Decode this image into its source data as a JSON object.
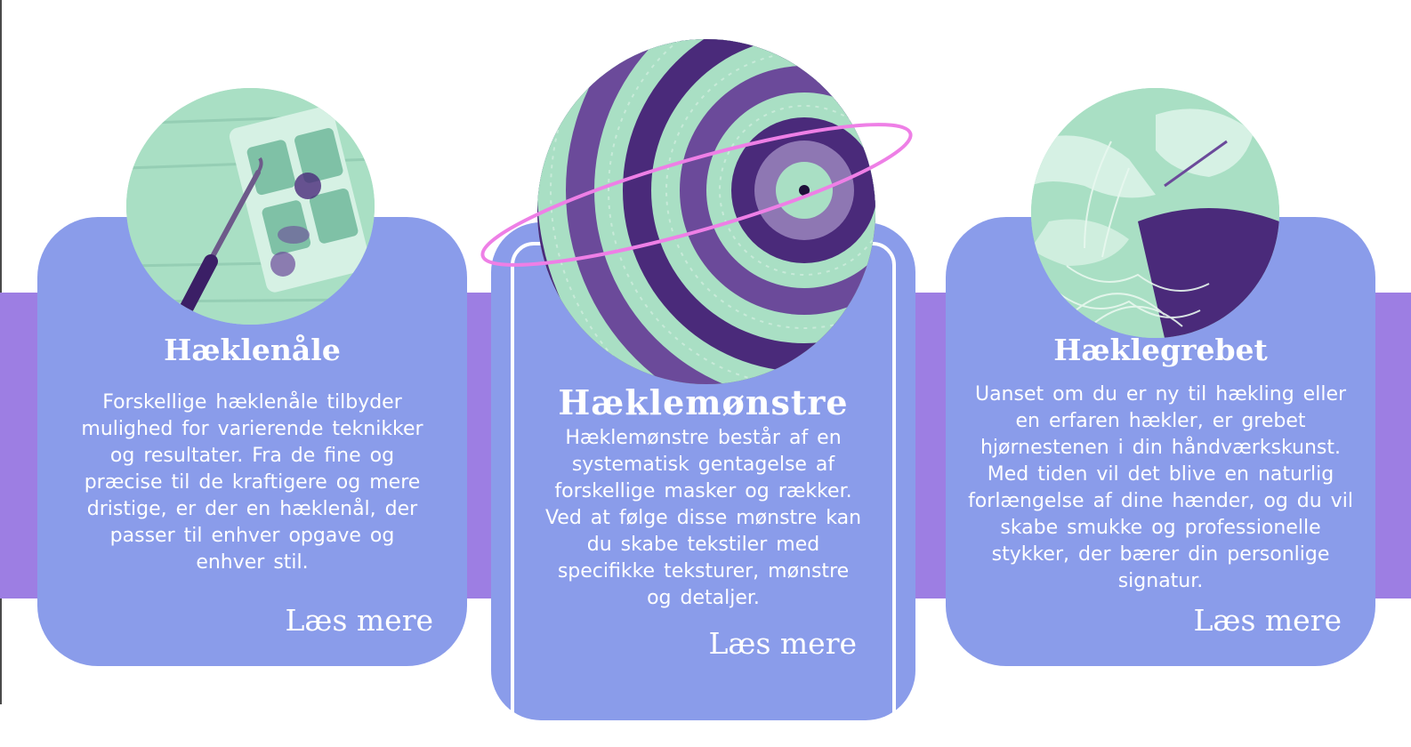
{
  "colors": {
    "band": "#9d7ee3",
    "card": "#8a9cea",
    "text": "#ffffff",
    "photo_light": "#a9dfc4",
    "photo_dark": "#4a2a7a",
    "orbit": "#ee7fe6"
  },
  "cards": [
    {
      "title": "Hæklenåle",
      "body": "Forskellige hæklenåle tilbyder mulighed for varierende teknikker og resultater. Fra de fine og præcise til de kraftigere og mere dristige, er der en hæklenål, der passer til enhver opgave og enhver stil.",
      "link": "Læs mere",
      "image_icon": "crochet-hook-photo"
    },
    {
      "title": "Hæklemønstre",
      "body": "Hæklemønstre består af en systematisk gentagelse af forskellige masker og rækker. Ved at følge disse mønstre kan du skabe tekstiler med specifikke teksturer, mønstre og detaljer.",
      "link": "Læs mere",
      "image_icon": "crochet-pattern-photo"
    },
    {
      "title": "Hæklegrebet",
      "body": "Uanset om du er ny til hækling eller en erfaren hækler, er grebet hjørnestenen i din håndværkskunst. Med tiden vil det blive en naturlig forlængelse af dine hænder, og du vil skabe smukke og professionelle stykker, der bærer din personlige signatur.",
      "link": "Læs mere",
      "image_icon": "crochet-hands-photo"
    }
  ]
}
